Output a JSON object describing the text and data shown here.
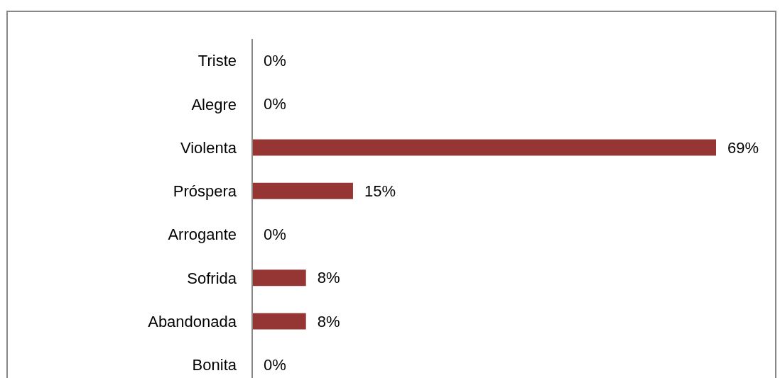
{
  "chart_data": {
    "type": "bar",
    "orientation": "horizontal",
    "categories": [
      "Triste",
      "Alegre",
      "Violenta",
      "Próspera",
      "Arrogante",
      "Sofrida",
      "Abandonada",
      "Bonita"
    ],
    "values": [
      0,
      0,
      69,
      15,
      0,
      8,
      8,
      0
    ],
    "value_labels": [
      "0%",
      "0%",
      "69%",
      "15%",
      "0%",
      "8%",
      "8%",
      "0%"
    ],
    "color": "#963634",
    "grid": false,
    "legend": false
  }
}
